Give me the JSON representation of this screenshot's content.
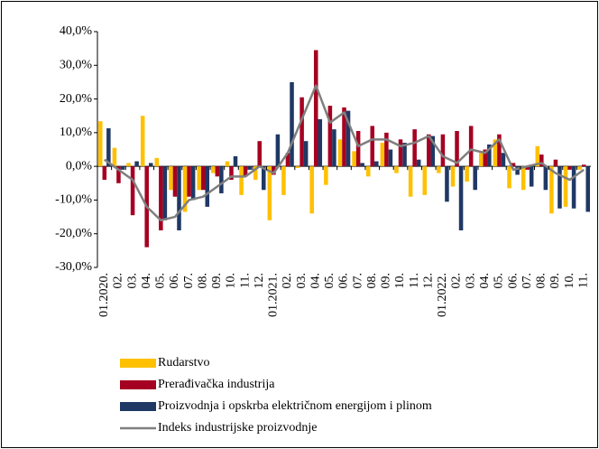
{
  "chart_data": {
    "type": "bar",
    "categories": [
      "01.2020.",
      "02.",
      "03.",
      "04.",
      "05.",
      "06.",
      "07.",
      "08.",
      "09.",
      "10.",
      "11.",
      "12.",
      "01.2021.",
      "02.",
      "03.",
      "04.",
      "05.",
      "06.",
      "07.",
      "08.",
      "09.",
      "10.",
      "11.",
      "12.",
      "01.2022.",
      "02.",
      "03.",
      "04.",
      "05.",
      "06.",
      "07.",
      "08.",
      "09.",
      "10.",
      "11."
    ],
    "series": [
      {
        "name": "Rudarstvo",
        "color": "#ffc000",
        "kind": "bar",
        "values": [
          13.4,
          5.5,
          1,
          15,
          2.5,
          -7,
          -13.5,
          -7,
          -2,
          1.5,
          -8.5,
          -4,
          -16,
          -8.5,
          -0.5,
          -14,
          -5.5,
          8,
          4.5,
          -3,
          7,
          -2,
          -9,
          -8.5,
          -2,
          -6,
          -4.5,
          4,
          8,
          -6.5,
          -7,
          6,
          -14,
          -12,
          -1
        ]
      },
      {
        "name": "Prerađivačka industrija",
        "color": "#a50021",
        "kind": "bar",
        "values": [
          -4,
          -5,
          -14.5,
          -24,
          -19,
          -9,
          -9,
          -7,
          -3,
          -4,
          -3,
          7.5,
          -2.5,
          4,
          20.5,
          34.5,
          18,
          17.5,
          10.5,
          12,
          10,
          8,
          11,
          9.5,
          9.5,
          10.5,
          12,
          5,
          9.5,
          1,
          -1,
          3.5,
          2,
          -1,
          0.5
        ]
      },
      {
        "name": "Proizvodnja i opskrba električnom energijom i plinom",
        "color": "#1f3864",
        "kind": "bar",
        "values": [
          11.3,
          -1,
          1.5,
          1,
          -16,
          -19,
          -10,
          -12,
          -8,
          3,
          -1,
          -7,
          9.5,
          25,
          7.5,
          14,
          11,
          16.5,
          1,
          1.5,
          5,
          7,
          2,
          9,
          -10.5,
          -19,
          -7,
          6.5,
          4,
          -2.5,
          -6,
          -7,
          -12.5,
          -12.5,
          -13.5
        ]
      },
      {
        "name": "Indeks industrijske proizvodnje",
        "color": "#7f7f7f",
        "kind": "line",
        "values": [
          2,
          -1,
          -4,
          -12,
          -16,
          -15,
          -10,
          -9,
          -6,
          -3,
          -3,
          0,
          -2,
          4,
          14,
          24,
          13,
          16,
          6,
          8,
          8,
          6,
          7,
          9,
          3,
          1,
          5,
          4,
          8,
          -1,
          0,
          1,
          -2,
          -4,
          -1
        ]
      }
    ],
    "ylim": [
      -30,
      40
    ],
    "yticks": [
      {
        "value": -30,
        "label": "-30,0%"
      },
      {
        "value": -20,
        "label": "-20,0%"
      },
      {
        "value": -10,
        "label": "-10,0%"
      },
      {
        "value": 0,
        "label": "0,0%"
      },
      {
        "value": 10,
        "label": "10,0%"
      },
      {
        "value": 20,
        "label": "20,0%"
      },
      {
        "value": 30,
        "label": "30,0%"
      },
      {
        "value": 40,
        "label": "40,0%"
      }
    ],
    "legend": "bottom"
  }
}
